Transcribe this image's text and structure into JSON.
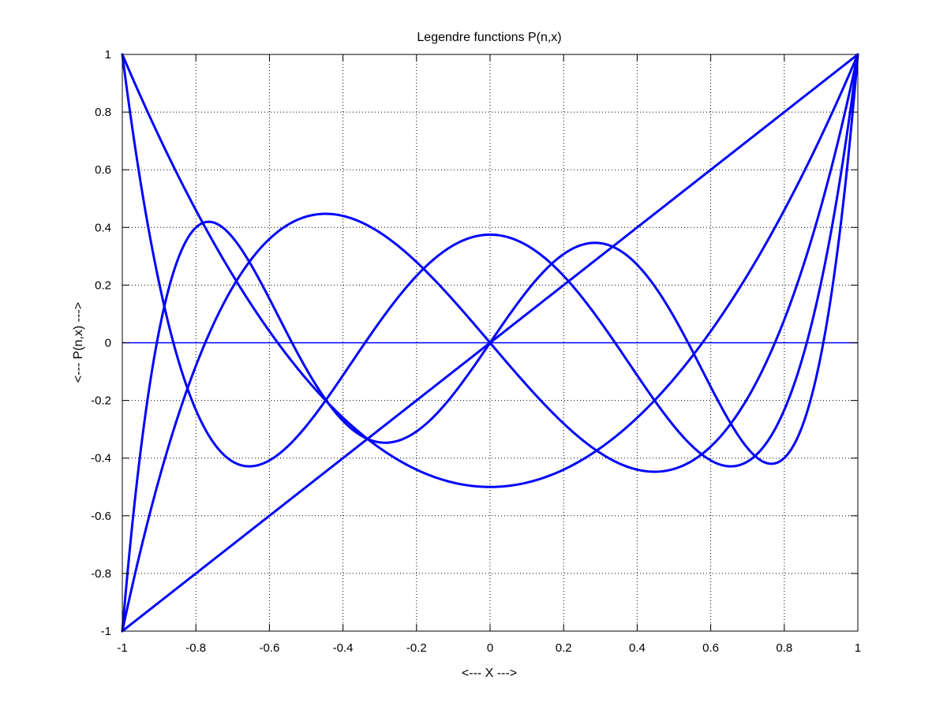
{
  "chart_data": {
    "type": "line",
    "title": "Legendre functions P(n,x)",
    "xlabel": "<--- X --->",
    "ylabel": "<--- P(n,x) --->",
    "xlim": [
      -1,
      1
    ],
    "ylim": [
      -1,
      1
    ],
    "x_ticks": [
      -1,
      -0.8,
      -0.6,
      -0.4,
      -0.2,
      0,
      0.2,
      0.4,
      0.6,
      0.8,
      1
    ],
    "x_tick_labels": [
      "-1",
      "-0.8",
      "-0.6",
      "-0.4",
      "-0.2",
      "0",
      "0.2",
      "0.4",
      "0.6",
      "0.8",
      "1"
    ],
    "y_ticks": [
      -1,
      -0.8,
      -0.6,
      -0.4,
      -0.2,
      0,
      0.2,
      0.4,
      0.6,
      0.8,
      1
    ],
    "y_tick_labels": [
      "-1",
      "-0.8",
      "-0.6",
      "-0.4",
      "-0.2",
      "0",
      "0.2",
      "0.4",
      "0.6",
      "0.8",
      "1"
    ],
    "grid": true,
    "line_color": "#0000ff",
    "series": [
      {
        "degree": 0,
        "x": [
          -1,
          1
        ],
        "y": [
          1,
          1
        ]
      },
      {
        "degree": 1,
        "x": [
          -1,
          0,
          1
        ],
        "y": [
          -1,
          0,
          1
        ]
      },
      {
        "degree": 2,
        "x": [
          -1,
          -0.8,
          -0.6,
          -0.4,
          -0.2,
          0,
          0.2,
          0.4,
          0.6,
          0.8,
          1
        ],
        "y": [
          1,
          0.46,
          0.04,
          -0.26,
          -0.44,
          -0.5,
          -0.44,
          -0.26,
          0.04,
          0.46,
          1
        ]
      },
      {
        "degree": 3,
        "x": [
          -1,
          -0.8,
          -0.6,
          -0.447,
          -0.4,
          -0.2,
          0,
          0.2,
          0.4,
          0.447,
          0.6,
          0.8,
          1
        ],
        "y": [
          -1,
          -0.08,
          0.36,
          0.447,
          0.44,
          0.28,
          0,
          -0.28,
          -0.44,
          -0.447,
          -0.36,
          0.08,
          1
        ]
      },
      {
        "degree": 4,
        "x": [
          -1,
          -0.9,
          -0.8,
          -0.65,
          -0.5,
          -0.34,
          -0.2,
          0,
          0.2,
          0.34,
          0.5,
          0.65,
          0.8,
          0.9,
          1
        ],
        "y": [
          1,
          0.34,
          -0.23,
          -0.43,
          -0.29,
          0,
          0.23,
          0.375,
          0.23,
          0,
          -0.29,
          -0.43,
          -0.23,
          0.34,
          1
        ]
      },
      {
        "degree": 5,
        "x": [
          -1,
          -0.9,
          -0.77,
          -0.6,
          -0.54,
          -0.4,
          -0.29,
          -0.2,
          0,
          0.2,
          0.29,
          0.4,
          0.54,
          0.6,
          0.77,
          0.9,
          1
        ],
        "y": [
          -1,
          -0.08,
          0.42,
          0.15,
          0,
          -0.27,
          -0.35,
          -0.31,
          0,
          0.31,
          0.35,
          0.27,
          0,
          -0.15,
          -0.42,
          0.08,
          1
        ]
      }
    ]
  }
}
